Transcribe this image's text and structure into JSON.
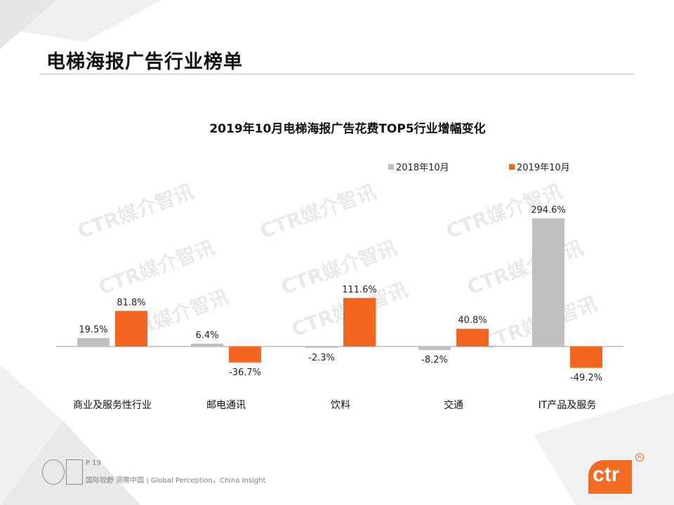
{
  "page": {
    "title": "电梯海报广告行业榜单"
  },
  "chart_data": {
    "type": "bar",
    "title": "2019年10月电梯海报广告花费TOP5行业增幅变化",
    "categories": [
      "商业及服务性行业",
      "邮电通讯",
      "饮料",
      "交通",
      "IT产品及服务"
    ],
    "series": [
      {
        "name": "2018年10月",
        "values": [
          19.5,
          6.4,
          -2.3,
          -8.2,
          294.6
        ],
        "labels": [
          "19.5%",
          "6.4%",
          "-2.3%",
          "-8.2%",
          "294.6%"
        ]
      },
      {
        "name": "2019年10月",
        "values": [
          81.8,
          -36.7,
          111.6,
          40.8,
          -49.2
        ],
        "labels": [
          "81.8%",
          "-36.7%",
          "111.6%",
          "40.8%",
          "-49.2%"
        ]
      }
    ],
    "ylim": [
      -60,
      310
    ],
    "colors": {
      "2018年10月": "#bfbfbf",
      "2019年10月": "#f4651f"
    },
    "legend": "top-right",
    "grid": false
  },
  "watermark": "CTR媒介智讯",
  "footer": {
    "page_number": "P 19",
    "tagline": "国际视野  洞察中国 |  Global Perception，China Insight"
  },
  "logo": {
    "text": "ctr",
    "mark": "R"
  }
}
